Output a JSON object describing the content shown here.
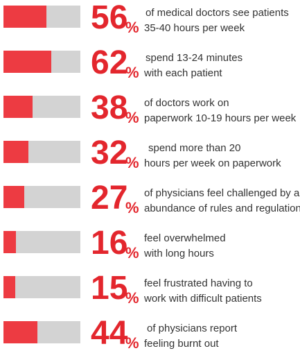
{
  "colors": {
    "fill": "#ed3b42",
    "track": "#d3d3d3",
    "accent": "#e3262d",
    "text": "#333333"
  },
  "chart_data": {
    "type": "bar",
    "orientation": "horizontal",
    "ylim": [
      0,
      100
    ],
    "items": [
      {
        "value": 56,
        "number": "56",
        "unit": "%",
        "line1": "of medical doctors see patients",
        "line2": "35-40 hours per week"
      },
      {
        "value": 62,
        "number": "62",
        "unit": "%",
        "line1": "spend 13-24 minutes",
        "line2": "with each patient"
      },
      {
        "value": 38,
        "number": "38",
        "unit": "%",
        "line1": "of doctors work on",
        "line2": "paperwork 10-19 hours per week"
      },
      {
        "value": 32,
        "number": "32",
        "unit": "%",
        "line1": "spend more than 20",
        "line2": "hours per week on paperwork"
      },
      {
        "value": 27,
        "number": "27",
        "unit": "%",
        "line1": "of physicians feel challenged by an",
        "line2": "abundance of rules and regulations"
      },
      {
        "value": 16,
        "number": "16",
        "unit": "%",
        "line1": "feel overwhelmed",
        "line2": "with long hours"
      },
      {
        "value": 15,
        "number": "15",
        "unit": "%",
        "line1": "feel frustrated having to",
        "line2": "work with difficult patients"
      },
      {
        "value": 44,
        "number": "44",
        "unit": "%",
        "line1": "of physicians report",
        "line2": "feeling burnt out"
      }
    ]
  }
}
